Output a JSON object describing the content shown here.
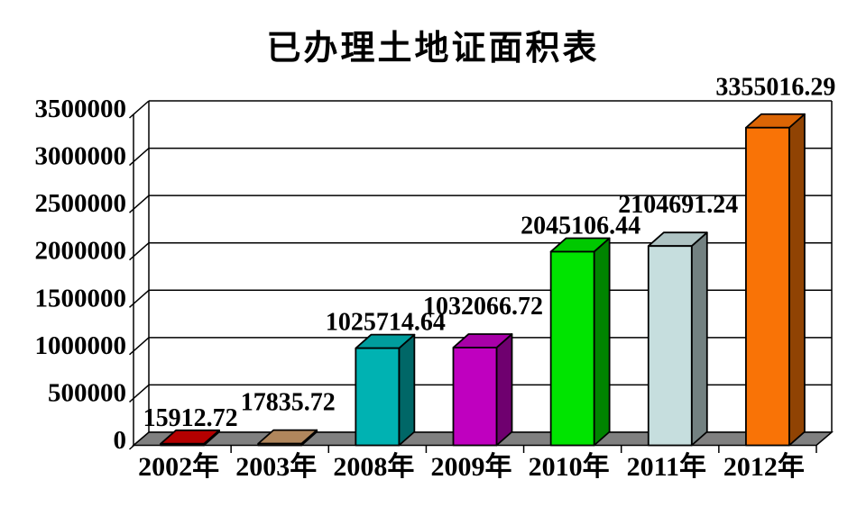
{
  "chart_data": {
    "type": "bar",
    "style": "3d-column",
    "title": "已办理土地证面积表",
    "categories": [
      "2002年",
      "2003年",
      "2008年",
      "2009年",
      "2010年",
      "2011年",
      "2012年"
    ],
    "values": [
      15912.72,
      17835.72,
      1025714.64,
      1032066.72,
      2045106.44,
      2104691.24,
      3355016.29
    ],
    "value_labels": [
      "15912.72",
      "17835.72",
      "1025714.64",
      "1032066.72",
      "2045106.44",
      "2104691.24",
      "3355016.29"
    ],
    "bar_colors": [
      "#cc0000",
      "#c89868",
      "#00b2b2",
      "#bf00bf",
      "#00e400",
      "#c6dede",
      "#f97306"
    ],
    "ylim": [
      0,
      3500000
    ],
    "ytick_interval": 500000,
    "ytick_labels": [
      "0",
      "500000",
      "1000000",
      "1500000",
      "2000000",
      "2500000",
      "3000000",
      "3500000"
    ],
    "grid": true,
    "legend": "none",
    "axis_color": "#000000",
    "floor_color": "#808080",
    "background": "#ffffff"
  }
}
